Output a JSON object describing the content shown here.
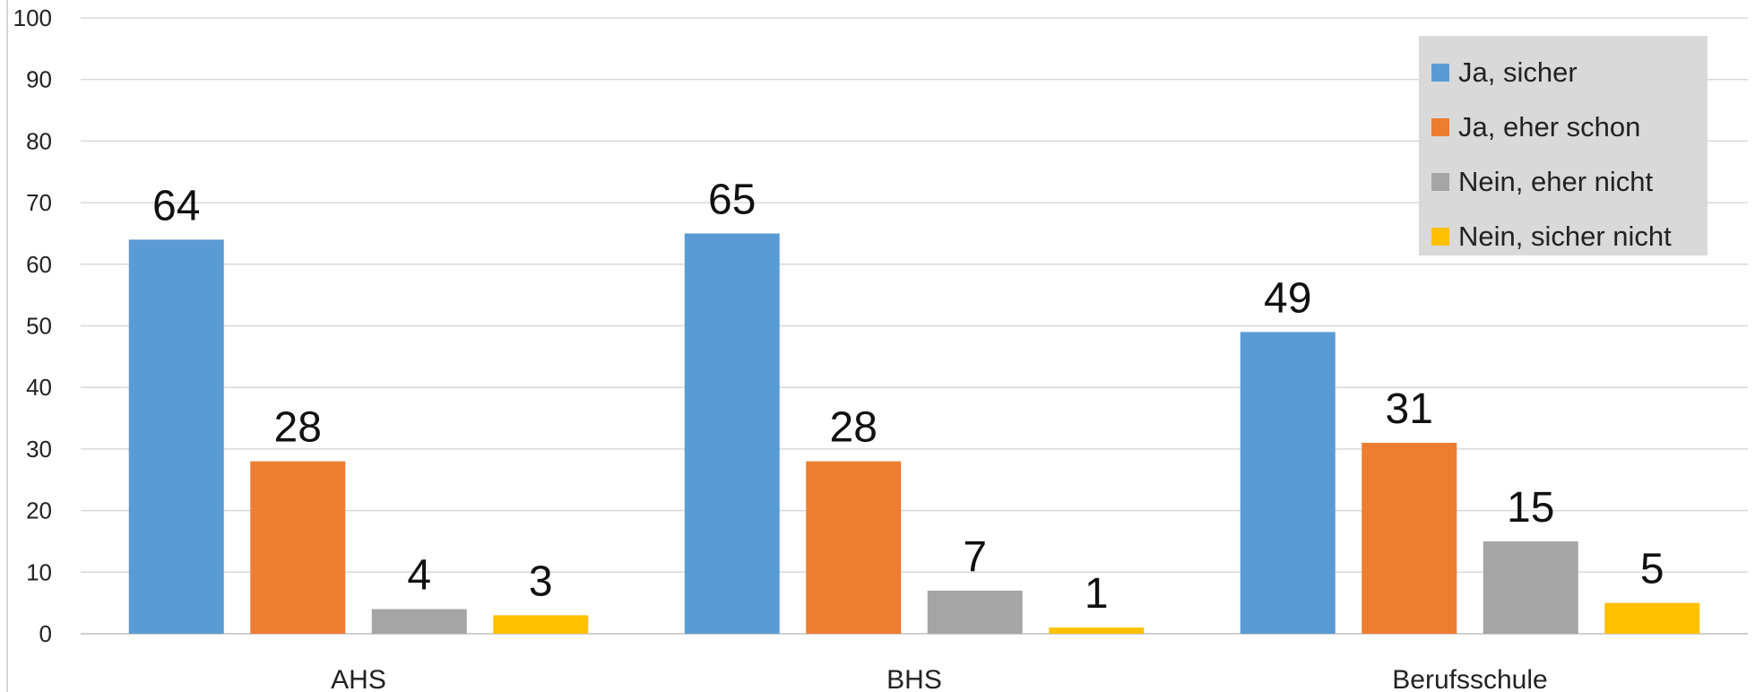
{
  "chart_data": {
    "type": "bar",
    "categories": [
      "AHS",
      "BHS",
      "Berufsschule"
    ],
    "series": [
      {
        "name": "Ja, sicher",
        "values": [
          64,
          65,
          49
        ],
        "color": "#5b9bd5"
      },
      {
        "name": "Ja, eher schon",
        "values": [
          28,
          28,
          31
        ],
        "color": "#ed7d31"
      },
      {
        "name": "Nein, eher nicht",
        "values": [
          4,
          7,
          15
        ],
        "color": "#a5a5a5"
      },
      {
        "name": "Nein, sicher nicht",
        "values": [
          3,
          1,
          5
        ],
        "color": "#ffc000"
      }
    ],
    "ylim": [
      0,
      100
    ],
    "yticks": [
      0,
      10,
      20,
      30,
      40,
      50,
      60,
      70,
      80,
      90,
      100
    ],
    "grid": true,
    "legend_position": "top-right",
    "data_labels": true
  }
}
